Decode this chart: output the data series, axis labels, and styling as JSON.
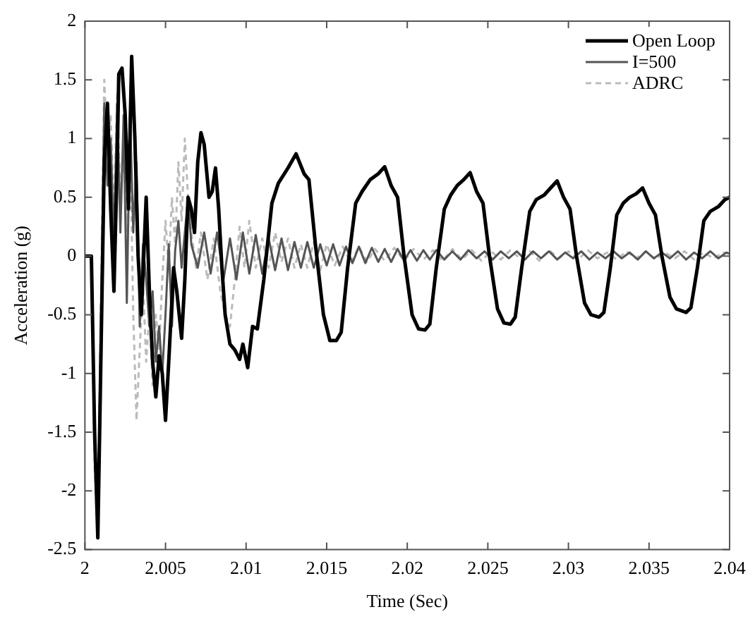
{
  "chart_data": {
    "type": "line",
    "xlabel": "Time (Sec)",
    "ylabel": "Acceleration (g)",
    "xlim": [
      2,
      2.04
    ],
    "xticks": [
      2,
      2.005,
      2.01,
      2.015,
      2.02,
      2.025,
      2.03,
      2.035,
      2.04
    ],
    "ylim": [
      -2.5,
      2
    ],
    "yticks": [
      -2.5,
      -2,
      -1.5,
      -1,
      -0.5,
      0,
      0.5,
      1,
      1.5,
      2
    ],
    "grid": false,
    "legend": "top right",
    "marker": "none",
    "series": [
      {
        "name": "Open Loop",
        "color": "#000000",
        "line_style": "solid",
        "x": [
          2,
          2.0004,
          2.0006,
          2.0008,
          2.001,
          2.0012,
          2.0014,
          2.0016,
          2.0018,
          2.002,
          2.0021,
          2.0023,
          2.0025,
          2.0027,
          2.0029,
          2.0031,
          2.0033,
          2.0035,
          2.0038,
          2.004,
          2.0042,
          2.0044,
          2.0046,
          2.0048,
          2.005,
          2.0052,
          2.0055,
          2.0057,
          2.006,
          2.0062,
          2.0064,
          2.0066,
          2.0068,
          2.007,
          2.0072,
          2.0074,
          2.0077,
          2.0079,
          2.0081,
          2.0083,
          2.0085,
          2.0087,
          2.009,
          2.0093,
          2.0096,
          2.0098,
          2.0101,
          2.0104,
          2.0107,
          2.0111,
          2.0116,
          2.012,
          2.0126,
          2.0131,
          2.0136,
          2.0139,
          2.0143,
          2.0148,
          2.0152,
          2.0156,
          2.0159,
          2.0163,
          2.0168,
          2.0172,
          2.0177,
          2.0182,
          2.0186,
          2.019,
          2.0194,
          2.0198,
          2.0203,
          2.0207,
          2.0211,
          2.0214,
          2.0218,
          2.0223,
          2.0227,
          2.0231,
          2.0235,
          2.0239,
          2.0243,
          2.0247,
          2.0251,
          2.0256,
          2.026,
          2.0264,
          2.0267,
          2.0271,
          2.0276,
          2.028,
          2.0285,
          2.0289,
          2.0293,
          2.0297,
          2.0301,
          2.0305,
          2.031,
          2.0314,
          2.0319,
          2.0322,
          2.0326,
          2.033,
          2.0334,
          2.0338,
          2.0342,
          2.0346,
          2.035,
          2.0354,
          2.0358,
          2.0363,
          2.0367,
          2.0373,
          2.0376,
          2.038,
          2.0384,
          2.0388,
          2.0393,
          2.0397,
          2.04
        ],
        "values": [
          0,
          0,
          -1.5,
          -2.4,
          -0.8,
          0.8,
          1.3,
          0.4,
          -0.3,
          0.8,
          1.55,
          1.6,
          1.2,
          0.4,
          1.7,
          1,
          0,
          -0.5,
          0.5,
          -0.3,
          -0.9,
          -1.2,
          -0.85,
          -1,
          -1.4,
          -0.9,
          -0.1,
          -0.3,
          -0.7,
          -0.2,
          0.5,
          0.4,
          0.2,
          0.8,
          1.05,
          0.95,
          0.5,
          0.55,
          0.75,
          0.4,
          -0.1,
          -0.5,
          -0.75,
          -0.8,
          -0.88,
          -0.75,
          -0.95,
          -0.6,
          -0.62,
          -0.2,
          0.45,
          0.62,
          0.75,
          0.87,
          0.7,
          0.65,
          0.1,
          -0.5,
          -0.72,
          -0.72,
          -0.65,
          -0.1,
          0.45,
          0.55,
          0.65,
          0.7,
          0.76,
          0.6,
          0.5,
          0,
          -0.5,
          -0.62,
          -0.63,
          -0.58,
          -0.1,
          0.4,
          0.52,
          0.6,
          0.65,
          0.71,
          0.55,
          0.45,
          0,
          -0.45,
          -0.57,
          -0.58,
          -0.52,
          -0.1,
          0.38,
          0.48,
          0.52,
          0.58,
          0.64,
          0.5,
          0.4,
          0,
          -0.4,
          -0.5,
          -0.52,
          -0.48,
          -0.1,
          0.35,
          0.45,
          0.5,
          0.53,
          0.58,
          0.45,
          0.35,
          0,
          -0.35,
          -0.45,
          -0.48,
          -0.44,
          -0.1,
          0.3,
          0.38,
          0.42,
          0.48,
          0.5
        ]
      },
      {
        "name": "I=500",
        "color": "#555555",
        "line_style": "solid",
        "x": [
          2,
          2.0004,
          2.0006,
          2.0008,
          2.001,
          2.0012,
          2.0014,
          2.0016,
          2.0018,
          2.002,
          2.0022,
          2.0024,
          2.0026,
          2.0028,
          2.003,
          2.0032,
          2.0034,
          2.0036,
          2.0038,
          2.004,
          2.0042,
          2.0044,
          2.0046,
          2.0048,
          2.005,
          2.0052,
          2.0054,
          2.0056,
          2.0058,
          2.006,
          2.0062,
          2.0064,
          2.0066,
          2.007,
          2.0074,
          2.0078,
          2.0082,
          2.0086,
          2.009,
          2.0094,
          2.0098,
          2.0102,
          2.0106,
          2.011,
          2.0114,
          2.0118,
          2.0122,
          2.0126,
          2.013,
          2.0134,
          2.0138,
          2.0142,
          2.0146,
          2.015,
          2.0154,
          2.0158,
          2.0162,
          2.0166,
          2.017,
          2.0174,
          2.0178,
          2.0182,
          2.0186,
          2.019,
          2.0194,
          2.0198,
          2.0202,
          2.0206,
          2.021,
          2.0214,
          2.0218,
          2.0223,
          2.0228,
          2.0233,
          2.0238,
          2.0243,
          2.0248,
          2.0253,
          2.0258,
          2.0263,
          2.0268,
          2.0273,
          2.0278,
          2.0283,
          2.0288,
          2.0293,
          2.0298,
          2.0303,
          2.0308,
          2.0313,
          2.0318,
          2.0323,
          2.0328,
          2.0333,
          2.0338,
          2.0343,
          2.0348,
          2.0353,
          2.0358,
          2.0363,
          2.0368,
          2.0373,
          2.0378,
          2.0383,
          2.0388,
          2.0393,
          2.0398,
          2.04
        ],
        "values": [
          0,
          0,
          -1.5,
          -2.3,
          -0.5,
          1.3,
          0.6,
          1,
          0.1,
          1.3,
          0.2,
          1.2,
          -0.4,
          1.2,
          0.2,
          0.8,
          -0.6,
          0.1,
          -0.2,
          -0.6,
          -0.3,
          -0.9,
          -0.6,
          -1,
          -0.5,
          0.1,
          -0.6,
          0.05,
          0.3,
          -0.1,
          0.2,
          0.5,
          0.1,
          -0.1,
          0.2,
          -0.15,
          0.2,
          -0.2,
          0.15,
          -0.2,
          0.2,
          -0.15,
          0.18,
          -0.15,
          0.15,
          -0.12,
          0.15,
          -0.12,
          0.12,
          -0.1,
          0.12,
          -0.1,
          0.1,
          -0.08,
          0.1,
          -0.08,
          0.08,
          -0.06,
          0.08,
          -0.06,
          0.07,
          -0.05,
          0.06,
          -0.05,
          0.06,
          -0.04,
          0.05,
          -0.04,
          0.05,
          -0.03,
          0.05,
          -0.03,
          0.04,
          -0.03,
          0.05,
          -0.02,
          0.04,
          -0.03,
          0.04,
          -0.02,
          0.04,
          -0.03,
          0.04,
          -0.02,
          0.04,
          -0.03,
          0.03,
          -0.02,
          0.04,
          -0.03,
          0.03,
          -0.02,
          0.04,
          -0.02,
          0.03,
          -0.03,
          0.04,
          -0.02,
          0.03,
          -0.02,
          0.04,
          -0.03,
          0.03,
          -0.02,
          0.04,
          -0.02,
          0.03,
          0.02
        ]
      },
      {
        "name": "ADRC",
        "color": "#bbbbbb",
        "line_style": "dashed",
        "x": [
          2,
          2.0004,
          2.0006,
          2.0008,
          2.001,
          2.0012,
          2.0014,
          2.0016,
          2.0018,
          2.002,
          2.0022,
          2.0024,
          2.0026,
          2.0028,
          2.003,
          2.0032,
          2.0034,
          2.0036,
          2.0038,
          2.004,
          2.0042,
          2.0044,
          2.0046,
          2.0048,
          2.005,
          2.0052,
          2.0054,
          2.0056,
          2.0058,
          2.006,
          2.0062,
          2.0064,
          2.0066,
          2.0069,
          2.0072,
          2.0076,
          2.008,
          2.0084,
          2.0087,
          2.009,
          2.0093,
          2.0096,
          2.0099,
          2.0102,
          2.0106,
          2.011,
          2.0114,
          2.0118,
          2.0122,
          2.0126,
          2.013,
          2.0134,
          2.0138,
          2.0142,
          2.0146,
          2.015,
          2.0155,
          2.016,
          2.0165,
          2.017,
          2.0175,
          2.018,
          2.0186,
          2.0192,
          2.0198,
          2.0204,
          2.021,
          2.0216,
          2.0222,
          2.0228,
          2.0234,
          2.024,
          2.0246,
          2.0252,
          2.0258,
          2.0264,
          2.027,
          2.0276,
          2.0282,
          2.0288,
          2.0294,
          2.03,
          2.0306,
          2.0312,
          2.0318,
          2.0324,
          2.033,
          2.0336,
          2.0342,
          2.0348,
          2.0354,
          2.036,
          2.0366,
          2.0372,
          2.0378,
          2.0384,
          2.039,
          2.0396,
          2.04
        ],
        "values": [
          0,
          0,
          -1.8,
          -2.3,
          -0.3,
          1.5,
          0.9,
          1.2,
          0.3,
          1.4,
          0.5,
          0.9,
          0.2,
          1,
          -0.5,
          -1.4,
          -0.8,
          -0.2,
          -0.9,
          -0.5,
          -1.1,
          -0.5,
          -0.8,
          -0.2,
          0.3,
          -0.1,
          0.5,
          0.1,
          0.8,
          0.3,
          1,
          0.5,
          0.2,
          -0.1,
          0.2,
          -0.2,
          0.15,
          -0.3,
          -0.5,
          -0.6,
          -0.2,
          0.25,
          -0.1,
          0.3,
          -0.1,
          0.15,
          -0.1,
          0.2,
          -0.05,
          0.15,
          -0.1,
          0.1,
          -0.1,
          0.12,
          -0.12,
          0.1,
          -0.08,
          0.08,
          -0.06,
          0.08,
          -0.05,
          0.06,
          -0.04,
          0.07,
          -0.04,
          0.06,
          -0.03,
          0.05,
          -0.04,
          0.06,
          -0.03,
          0.05,
          -0.04,
          0.04,
          -0.03,
          0.05,
          -0.02,
          0.04,
          -0.04,
          0.05,
          -0.02,
          0.04,
          -0.03,
          0.05,
          -0.02,
          0.03,
          -0.03,
          0.04,
          -0.02,
          0.04,
          -0.03,
          0.03,
          -0.02,
          0.04,
          -0.03,
          0.03,
          -0.02,
          0.03,
          0.02
        ]
      }
    ]
  }
}
